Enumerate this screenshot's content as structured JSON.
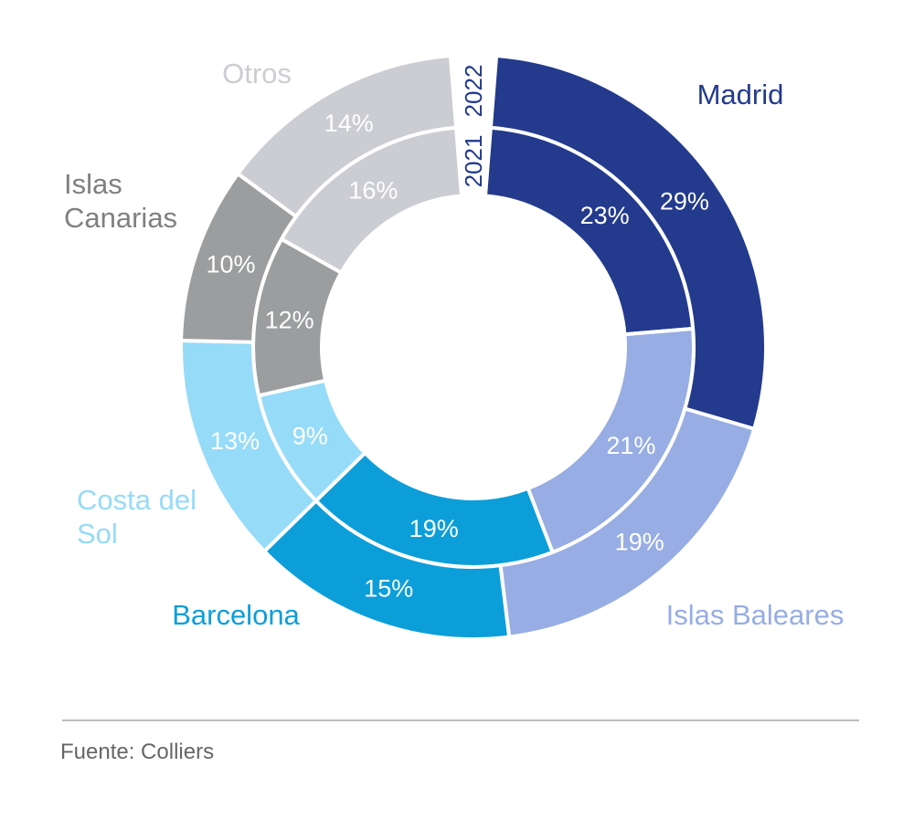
{
  "chart_data": {
    "type": "pie",
    "variant": "nested-donut",
    "categories": [
      "Madrid",
      "Islas Baleares",
      "Barcelona",
      "Costa del Sol",
      "Islas Canarias",
      "Otros"
    ],
    "series": [
      {
        "name": "2021",
        "ring": "inner",
        "values": [
          23,
          21,
          19,
          9,
          12,
          16
        ]
      },
      {
        "name": "2022",
        "ring": "outer",
        "values": [
          29,
          19,
          15,
          13,
          10,
          14
        ]
      }
    ],
    "value_suffix": "%",
    "colors": [
      "#233a8d",
      "#97ade3",
      "#0c9ed9",
      "#96dbf8",
      "#9b9d9f",
      "#cccdd2"
    ],
    "label_colors": [
      "#233a8d",
      "#97ade3",
      "#0c9ed9",
      "#96dbf8",
      "#808080",
      "#cccdd2"
    ],
    "category_label_lines": [
      [
        "Madrid"
      ],
      [
        "Islas Baleares"
      ],
      [
        "Barcelona"
      ],
      [
        "Costa del",
        "Sol"
      ],
      [
        "Islas",
        "Canarias"
      ],
      [
        "Otros"
      ]
    ],
    "year_labels": [
      "2021",
      "2022"
    ]
  },
  "footer": {
    "source": "Fuente: Colliers"
  }
}
